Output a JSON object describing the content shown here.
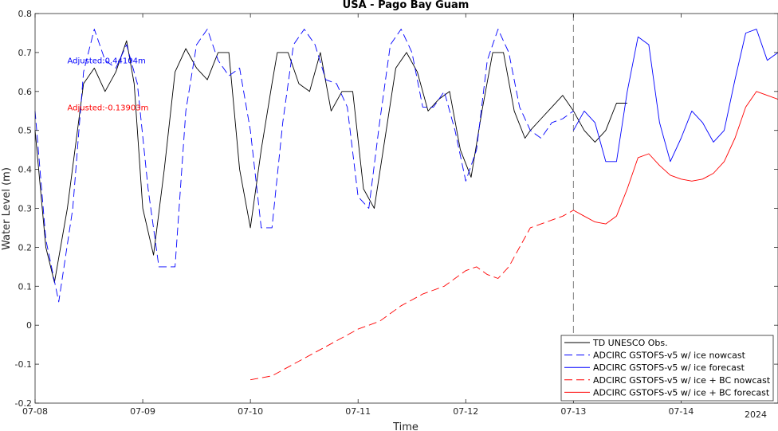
{
  "chart_data": {
    "type": "line",
    "title": "USA - Pago Bay Guam",
    "xlabel": "Time",
    "ylabel": "Water Level (m)",
    "year_label": "2024",
    "x_tick_labels": [
      "07-08",
      "07-09",
      "07-10",
      "07-11",
      "07-12",
      "07-13",
      "07-14"
    ],
    "y_ticks": [
      -0.2,
      -0.1,
      0,
      0.1,
      0.2,
      0.3,
      0.4,
      0.5,
      0.6,
      0.7,
      0.8
    ],
    "y_tick_labels": [
      "-0.2",
      "-0.1",
      "0",
      "0.1",
      "0.2",
      "0.3",
      "0.4",
      "0.5",
      "0.6",
      "0.7",
      "0.8"
    ],
    "xlim_days": [
      0,
      6.9
    ],
    "ylim": [
      -0.2,
      0.8
    ],
    "forecast_start_day": 5,
    "annotations": [
      {
        "text": "Adjusted:0.44104m",
        "color": "#0000ff",
        "x": 0.3,
        "y": 0.68
      },
      {
        "text": "Adjusted:-0.13903m",
        "color": "#ff0000",
        "x": 0.3,
        "y": 0.56
      }
    ],
    "legend_position": "bottom-right",
    "series": [
      {
        "name": "TD UNESCO Obs.",
        "color": "#000000",
        "dash": "solid",
        "x": [
          0,
          0.1,
          0.18,
          0.3,
          0.45,
          0.55,
          0.65,
          0.75,
          0.85,
          0.92,
          1.0,
          1.1,
          1.2,
          1.3,
          1.4,
          1.5,
          1.6,
          1.7,
          1.8,
          1.9,
          2.0,
          2.1,
          2.2,
          2.25,
          2.35,
          2.45,
          2.55,
          2.65,
          2.75,
          2.85,
          2.95,
          3.05,
          3.15,
          3.25,
          3.35,
          3.45,
          3.55,
          3.65,
          3.75,
          3.85,
          3.95,
          4.05,
          4.15,
          4.25,
          4.35,
          4.45,
          4.55,
          4.6,
          4.7,
          4.8,
          4.9,
          5.0,
          5.1,
          5.2,
          5.3,
          5.4,
          5.5
        ],
        "y": [
          0.5,
          0.2,
          0.11,
          0.3,
          0.62,
          0.66,
          0.6,
          0.65,
          0.73,
          0.62,
          0.3,
          0.18,
          0.4,
          0.65,
          0.71,
          0.66,
          0.63,
          0.7,
          0.7,
          0.4,
          0.25,
          0.45,
          0.62,
          0.7,
          0.7,
          0.62,
          0.6,
          0.7,
          0.55,
          0.6,
          0.6,
          0.35,
          0.3,
          0.48,
          0.66,
          0.7,
          0.65,
          0.55,
          0.58,
          0.6,
          0.45,
          0.38,
          0.55,
          0.7,
          0.7,
          0.55,
          0.48,
          0.5,
          0.53,
          0.56,
          0.59,
          0.55,
          0.5,
          0.47,
          0.5,
          0.57,
          0.57
        ]
      },
      {
        "name": "ADCIRC GSTOFS-v5 w/ ice nowcast",
        "color": "#0000ff",
        "dash": "dashed",
        "x": [
          0,
          0.1,
          0.22,
          0.35,
          0.45,
          0.55,
          0.65,
          0.75,
          0.85,
          0.95,
          1.05,
          1.15,
          1.3,
          1.4,
          1.5,
          1.6,
          1.7,
          1.8,
          1.9,
          2.0,
          2.1,
          2.2,
          2.3,
          2.4,
          2.5,
          2.6,
          2.7,
          2.8,
          2.9,
          3.0,
          3.1,
          3.2,
          3.3,
          3.4,
          3.5,
          3.6,
          3.7,
          3.8,
          3.9,
          4.0,
          4.1,
          4.2,
          4.3,
          4.4,
          4.5,
          4.6,
          4.7,
          4.8,
          4.9,
          5.0
        ],
        "y": [
          0.55,
          0.22,
          0.06,
          0.3,
          0.65,
          0.76,
          0.68,
          0.66,
          0.72,
          0.62,
          0.35,
          0.15,
          0.15,
          0.55,
          0.72,
          0.76,
          0.68,
          0.64,
          0.66,
          0.5,
          0.25,
          0.25,
          0.52,
          0.72,
          0.76,
          0.72,
          0.63,
          0.62,
          0.56,
          0.33,
          0.3,
          0.52,
          0.72,
          0.76,
          0.7,
          0.56,
          0.56,
          0.6,
          0.5,
          0.37,
          0.45,
          0.68,
          0.76,
          0.7,
          0.56,
          0.5,
          0.48,
          0.52,
          0.53,
          0.55
        ]
      },
      {
        "name": "ADCIRC GSTOFS-v5 w/ ice forecast",
        "color": "#0000ff",
        "dash": "solid",
        "x": [
          5.0,
          5.1,
          5.2,
          5.3,
          5.4,
          5.5,
          5.6,
          5.7,
          5.8,
          5.9,
          6.0,
          6.1,
          6.2,
          6.3,
          6.4,
          6.5,
          6.6,
          6.7,
          6.8,
          6.9
        ],
        "y": [
          0.5,
          0.55,
          0.52,
          0.42,
          0.42,
          0.6,
          0.74,
          0.72,
          0.52,
          0.42,
          0.48,
          0.55,
          0.52,
          0.47,
          0.5,
          0.63,
          0.75,
          0.76,
          0.68,
          0.7
        ]
      },
      {
        "name": "ADCIRC GSTOFS-v5 w/ ice + BC nowcast",
        "color": "#ff0000",
        "dash": "dashed",
        "x": [
          2.0,
          2.2,
          2.4,
          2.6,
          2.8,
          3.0,
          3.2,
          3.4,
          3.6,
          3.8,
          3.9,
          4.0,
          4.1,
          4.2,
          4.3,
          4.4,
          4.5,
          4.6,
          4.7,
          4.8,
          4.9,
          5.0
        ],
        "y": [
          -0.14,
          -0.13,
          -0.1,
          -0.07,
          -0.04,
          -0.01,
          0.01,
          0.05,
          0.08,
          0.1,
          0.12,
          0.14,
          0.15,
          0.13,
          0.12,
          0.15,
          0.2,
          0.25,
          0.26,
          0.27,
          0.28,
          0.295
        ]
      },
      {
        "name": "ADCIRC GSTOFS-v5 w/ ice + BC forecast",
        "color": "#ff0000",
        "dash": "solid",
        "x": [
          5.0,
          5.1,
          5.2,
          5.3,
          5.4,
          5.5,
          5.6,
          5.7,
          5.8,
          5.9,
          6.0,
          6.1,
          6.2,
          6.3,
          6.4,
          6.5,
          6.6,
          6.7,
          6.8,
          6.9
        ],
        "y": [
          0.295,
          0.28,
          0.265,
          0.26,
          0.28,
          0.35,
          0.43,
          0.44,
          0.41,
          0.385,
          0.375,
          0.37,
          0.375,
          0.39,
          0.42,
          0.48,
          0.56,
          0.6,
          0.59,
          0.58
        ]
      }
    ]
  }
}
